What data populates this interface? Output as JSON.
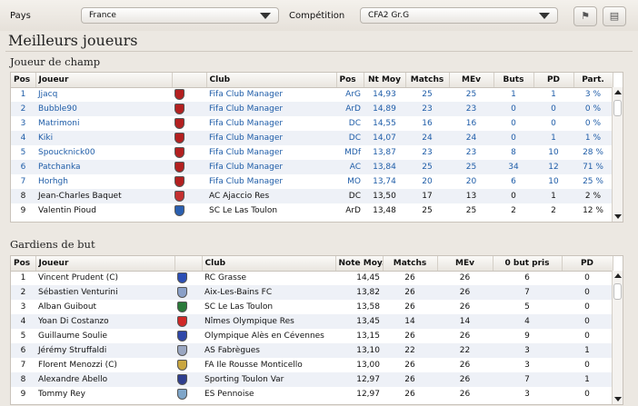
{
  "filters": {
    "pays_label": "Pays",
    "pays_value": "France",
    "competition_label": "Compétition",
    "competition_value": "CFA2 Gr.G"
  },
  "page_title": "Meilleurs joueurs",
  "field_players": {
    "title": "Joueur de champ",
    "headers": [
      "Pos",
      "Joueur",
      "",
      "Club",
      "Pos",
      "Nt Moy",
      "Matchs",
      "MEv",
      "Buts",
      "PD",
      "Part."
    ],
    "rows": [
      {
        "pos": "1",
        "joueur": "Jjacq",
        "club": "Fifa Club Manager",
        "poste": "ArG",
        "nt": "14,93",
        "matchs": "25",
        "mev": "25",
        "buts": "1",
        "pd": "1",
        "part": "3 %",
        "crest": "#b32020",
        "blue": true
      },
      {
        "pos": "2",
        "joueur": "Bubble90",
        "club": "Fifa Club Manager",
        "poste": "ArD",
        "nt": "14,89",
        "matchs": "23",
        "mev": "23",
        "buts": "0",
        "pd": "0",
        "part": "0 %",
        "crest": "#b32020",
        "blue": true
      },
      {
        "pos": "3",
        "joueur": "Matrimoni",
        "club": "Fifa Club Manager",
        "poste": "DC",
        "nt": "14,55",
        "matchs": "16",
        "mev": "16",
        "buts": "0",
        "pd": "0",
        "part": "0 %",
        "crest": "#b32020",
        "blue": true
      },
      {
        "pos": "4",
        "joueur": "Kiki",
        "club": "Fifa Club Manager",
        "poste": "DC",
        "nt": "14,07",
        "matchs": "24",
        "mev": "24",
        "buts": "0",
        "pd": "1",
        "part": "1 %",
        "crest": "#b32020",
        "blue": true
      },
      {
        "pos": "5",
        "joueur": "Spoucknick00",
        "club": "Fifa Club Manager",
        "poste": "MDf",
        "nt": "13,87",
        "matchs": "23",
        "mev": "23",
        "buts": "8",
        "pd": "10",
        "part": "28 %",
        "crest": "#b32020",
        "blue": true
      },
      {
        "pos": "6",
        "joueur": "Patchanka",
        "club": "Fifa Club Manager",
        "poste": "AC",
        "nt": "13,84",
        "matchs": "25",
        "mev": "25",
        "buts": "34",
        "pd": "12",
        "part": "71 %",
        "crest": "#b32020",
        "blue": true
      },
      {
        "pos": "7",
        "joueur": "Horhgh",
        "club": "Fifa Club Manager",
        "poste": "MO",
        "nt": "13,74",
        "matchs": "20",
        "mev": "20",
        "buts": "6",
        "pd": "10",
        "part": "25 %",
        "crest": "#b32020",
        "blue": true
      },
      {
        "pos": "8",
        "joueur": "Jean-Charles Baquet",
        "club": "AC Ajaccio Res",
        "poste": "DC",
        "nt": "13,50",
        "matchs": "17",
        "mev": "13",
        "buts": "0",
        "pd": "1",
        "part": "2 %",
        "crest": "#c43030",
        "blue": false
      },
      {
        "pos": "9",
        "joueur": "Valentin Pioud",
        "club": "SC Le Las Toulon",
        "poste": "ArD",
        "nt": "13,48",
        "matchs": "25",
        "mev": "25",
        "buts": "2",
        "pd": "2",
        "part": "12 %",
        "crest": "#2a5fb0",
        "blue": false
      }
    ]
  },
  "goalkeepers": {
    "title": "Gardiens de but",
    "headers": [
      "Pos",
      "Joueur",
      "",
      "Club",
      "Note Moy.",
      "Matchs",
      "MEv",
      "0 but pris",
      "PD"
    ],
    "rows": [
      {
        "pos": "1",
        "joueur": "Vincent Prudent (C)",
        "club": "RC Grasse",
        "nt": "14,45",
        "matchs": "26",
        "mev": "26",
        "zero": "6",
        "pd": "0",
        "crest": "#2c4fb5"
      },
      {
        "pos": "2",
        "joueur": "Sébastien Venturini",
        "club": "Aix-Les-Bains FC",
        "nt": "13,82",
        "matchs": "26",
        "mev": "26",
        "zero": "7",
        "pd": "0",
        "crest": "#8aa0c8"
      },
      {
        "pos": "3",
        "joueur": "Alban Guibout",
        "club": "SC Le Las Toulon",
        "nt": "13,58",
        "matchs": "26",
        "mev": "26",
        "zero": "5",
        "pd": "0",
        "crest": "#2a7a3a"
      },
      {
        "pos": "4",
        "joueur": "Yoan Di Costanzo",
        "club": "Nîmes Olympique Res",
        "nt": "13,45",
        "matchs": "14",
        "mev": "14",
        "zero": "4",
        "pd": "0",
        "crest": "#d02828"
      },
      {
        "pos": "5",
        "joueur": "Guillaume Soulie",
        "club": "Olympique Alès en Cévennes",
        "nt": "13,15",
        "matchs": "26",
        "mev": "26",
        "zero": "9",
        "pd": "0",
        "crest": "#3048a8"
      },
      {
        "pos": "6",
        "joueur": "Jérémy Struffaldi",
        "club": "AS Fabrègues",
        "nt": "13,10",
        "matchs": "22",
        "mev": "22",
        "zero": "3",
        "pd": "1",
        "crest": "#9aa7c2"
      },
      {
        "pos": "7",
        "joueur": "Florent Menozzi (C)",
        "club": "FA Ile Rousse Monticello",
        "nt": "13,00",
        "matchs": "26",
        "mev": "26",
        "zero": "3",
        "pd": "0",
        "crest": "#c9a640"
      },
      {
        "pos": "8",
        "joueur": "Alexandre Abello",
        "club": "Sporting Toulon Var",
        "nt": "12,97",
        "matchs": "26",
        "mev": "26",
        "zero": "7",
        "pd": "1",
        "crest": "#2f3f8f"
      },
      {
        "pos": "9",
        "joueur": "Tommy Rey",
        "club": "ES Pennoise",
        "nt": "12,97",
        "matchs": "26",
        "mev": "26",
        "zero": "3",
        "pd": "0",
        "crest": "#7fa6c9"
      }
    ]
  }
}
